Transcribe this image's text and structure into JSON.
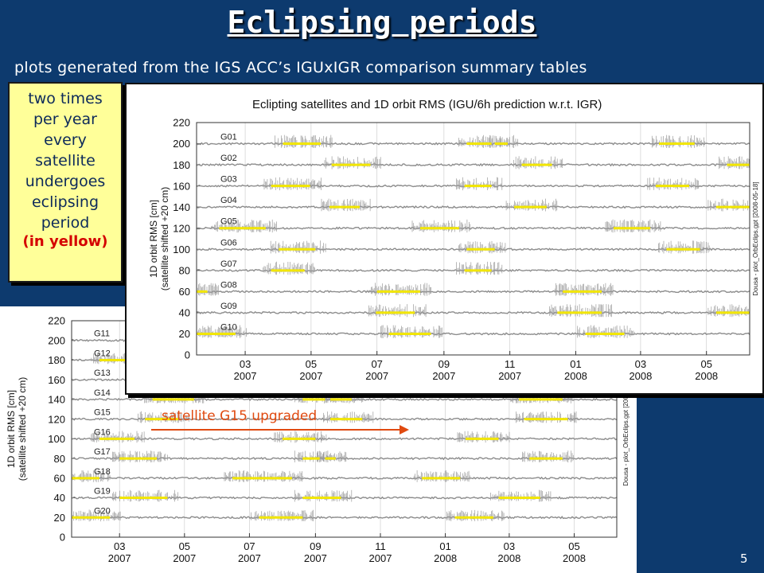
{
  "slide": {
    "title": "Eclipsing periods",
    "subtitle": "plots generated from the IGS ACC’s IGUxIGR comparison summary tables",
    "note_text": "two times\nper year\nevery\nsatellite\nundergoes\neclipsing\nperiod",
    "note_emphasis": "(in yellow)",
    "annotation": "satellite G15 upgraded",
    "page_number": "5",
    "colors": {
      "background": "#0d3a6e",
      "note_bg": "#ffff99",
      "eclipse": "#f2e600",
      "annotation": "#e04a10",
      "trace": "#8c8c8c"
    }
  },
  "chart_data": [
    {
      "type": "line",
      "title": "Eclipting satellites and 1D orbit RMS (IGU/6h prediction w.r.t. IGR)",
      "ylabel": "1D orbit RMS [cm]",
      "ylabel2": "(satellite shifted +20 cm)",
      "ylim": [
        0,
        220
      ],
      "yticks": [
        0,
        20,
        40,
        60,
        80,
        100,
        120,
        140,
        160,
        180,
        200,
        220
      ],
      "xlim": [
        "2007-01-15",
        "2008-06-10"
      ],
      "xticks": [
        {
          "x": "2007-03-01",
          "m": "03",
          "y": "2007"
        },
        {
          "x": "2007-05-01",
          "m": "05",
          "y": "2007"
        },
        {
          "x": "2007-07-01",
          "m": "07",
          "y": "2007"
        },
        {
          "x": "2007-09-01",
          "m": "09",
          "y": "2007"
        },
        {
          "x": "2007-11-01",
          "m": "11",
          "y": "2007"
        },
        {
          "x": "2008-01-01",
          "m": "01",
          "y": "2008"
        },
        {
          "x": "2008-03-01",
          "m": "03",
          "y": "2008"
        },
        {
          "x": "2008-05-01",
          "m": "05",
          "y": "2008"
        }
      ],
      "credit": "Dousa - plot_OrbEclips.gpt   [2008-05-18]",
      "series": [
        {
          "name": "G01",
          "baseline": 200,
          "eclipses": [
            [
              "2007-04-05",
              "2007-05-10"
            ],
            [
              "2007-09-22",
              "2007-10-15"
            ],
            [
              "2007-10-18",
              "2007-10-30"
            ],
            [
              "2008-03-18",
              "2008-04-20"
            ]
          ]
        },
        {
          "name": "G02",
          "baseline": 180,
          "eclipses": [
            [
              "2007-05-20",
              "2007-06-25"
            ],
            [
              "2007-11-12",
              "2007-12-10"
            ],
            [
              "2008-05-20",
              "2008-06-10"
            ]
          ]
        },
        {
          "name": "G03",
          "baseline": 160,
          "eclipses": [
            [
              "2007-03-25",
              "2007-04-30"
            ],
            [
              "2007-09-20",
              "2007-10-15"
            ],
            [
              "2008-03-15",
              "2008-04-15"
            ]
          ]
        },
        {
          "name": "G04",
          "baseline": 140,
          "eclipses": [
            [
              "2007-05-18",
              "2007-06-15"
            ],
            [
              "2007-11-05",
              "2007-12-05"
            ],
            [
              "2008-05-10",
              "2008-06-10"
            ]
          ]
        },
        {
          "name": "G05",
          "baseline": 120,
          "eclipses": [
            [
              "2007-02-05",
              "2007-03-20"
            ],
            [
              "2007-08-10",
              "2007-09-15"
            ],
            [
              "2008-02-05",
              "2008-03-10"
            ]
          ]
        },
        {
          "name": "G06",
          "baseline": 100,
          "eclipses": [
            [
              "2007-04-01",
              "2007-05-05"
            ],
            [
              "2007-09-22",
              "2007-10-18"
            ],
            [
              "2008-03-25",
              "2008-04-25"
            ]
          ]
        },
        {
          "name": "G07",
          "baseline": 80,
          "eclipses": [
            [
              "2007-03-25",
              "2007-04-25"
            ],
            [
              "2007-09-20",
              "2007-10-15"
            ]
          ]
        },
        {
          "name": "G08",
          "baseline": 60,
          "eclipses": [
            [
              "2007-01-15",
              "2007-01-25"
            ],
            [
              "2007-07-01",
              "2007-08-10"
            ],
            [
              "2007-12-20",
              "2008-01-25"
            ]
          ]
        },
        {
          "name": "G09",
          "baseline": 40,
          "eclipses": [
            [
              "2007-06-30",
              "2007-08-05"
            ],
            [
              "2007-12-15",
              "2008-01-25"
            ],
            [
              "2008-05-10",
              "2008-06-10"
            ]
          ]
        },
        {
          "name": "G10",
          "baseline": 20,
          "eclipses": [
            [
              "2007-01-15",
              "2007-02-20"
            ],
            [
              "2007-07-12",
              "2007-08-20"
            ],
            [
              "2008-01-10",
              "2008-02-15"
            ]
          ]
        }
      ]
    },
    {
      "type": "line",
      "title": "",
      "ylabel": "1D orbit RMS [cm]",
      "ylabel2": "(satellite shifted +20 cm)",
      "ylim": [
        0,
        220
      ],
      "yticks": [
        0,
        20,
        40,
        60,
        80,
        100,
        120,
        140,
        160,
        180,
        200,
        220
      ],
      "xlim": [
        "2007-01-15",
        "2008-06-10"
      ],
      "xticks": [
        {
          "x": "2007-03-01",
          "m": "03",
          "y": "2007"
        },
        {
          "x": "2007-05-01",
          "m": "05",
          "y": "2007"
        },
        {
          "x": "2007-07-01",
          "m": "07",
          "y": "2007"
        },
        {
          "x": "2007-09-01",
          "m": "09",
          "y": "2007"
        },
        {
          "x": "2007-11-01",
          "m": "11",
          "y": "2007"
        },
        {
          "x": "2008-01-01",
          "m": "01",
          "y": "2008"
        },
        {
          "x": "2008-03-01",
          "m": "03",
          "y": "2008"
        },
        {
          "x": "2008-05-01",
          "m": "05",
          "y": "2008"
        }
      ],
      "credit": "Dousa - plot_OrbEclips.gpt   [2008-05-18]",
      "series": [
        {
          "name": "G11",
          "baseline": 200,
          "eclipses": [
            [
              "2007-06-10",
              "2007-07-15"
            ],
            [
              "2007-12-05",
              "2008-01-10"
            ]
          ]
        },
        {
          "name": "G12",
          "baseline": 180,
          "eclipses": [
            [
              "2007-02-10",
              "2007-03-10"
            ],
            [
              "2007-08-05",
              "2007-09-10"
            ],
            [
              "2008-02-05",
              "2008-03-05"
            ]
          ]
        },
        {
          "name": "G13",
          "baseline": 160,
          "eclipses": [
            [
              "2007-05-10",
              "2007-06-10"
            ],
            [
              "2007-11-10",
              "2007-12-10"
            ]
          ]
        },
        {
          "name": "G14",
          "baseline": 140,
          "eclipses": [
            [
              "2007-04-01",
              "2007-05-10"
            ],
            [
              "2007-08-20",
              "2007-09-10"
            ],
            [
              "2007-09-15",
              "2007-10-05"
            ],
            [
              "2008-03-10",
              "2008-04-20"
            ]
          ]
        },
        {
          "name": "G15",
          "baseline": 120,
          "eclipses": [
            [
              "2007-03-25",
              "2007-04-25"
            ],
            [
              "2007-09-15",
              "2007-10-15"
            ],
            [
              "2008-03-15",
              "2008-04-25"
            ]
          ]
        },
        {
          "name": "G16",
          "baseline": 100,
          "eclipses": [
            [
              "2007-02-10",
              "2007-03-15"
            ],
            [
              "2007-08-01",
              "2007-09-01"
            ],
            [
              "2008-01-20",
              "2008-02-20"
            ]
          ]
        },
        {
          "name": "G17",
          "baseline": 80,
          "eclipses": [
            [
              "2007-03-01",
              "2007-04-05"
            ],
            [
              "2007-08-20",
              "2007-09-05"
            ],
            [
              "2007-09-10",
              "2007-09-20"
            ],
            [
              "2008-03-20",
              "2008-04-20"
            ]
          ]
        },
        {
          "name": "G18",
          "baseline": 60,
          "eclipses": [
            [
              "2007-01-15",
              "2007-02-10"
            ],
            [
              "2007-06-15",
              "2007-08-10"
            ],
            [
              "2007-12-10",
              "2008-01-15"
            ]
          ]
        },
        {
          "name": "G19",
          "baseline": 40,
          "eclipses": [
            [
              "2007-03-01",
              "2007-04-15"
            ],
            [
              "2007-08-20",
              "2007-09-25"
            ],
            [
              "2008-02-20",
              "2008-03-30"
            ]
          ]
        },
        {
          "name": "G20",
          "baseline": 20,
          "eclipses": [
            [
              "2007-01-15",
              "2007-02-20"
            ],
            [
              "2007-07-10",
              "2007-08-20"
            ],
            [
              "2008-01-10",
              "2008-02-15"
            ]
          ]
        }
      ]
    }
  ]
}
